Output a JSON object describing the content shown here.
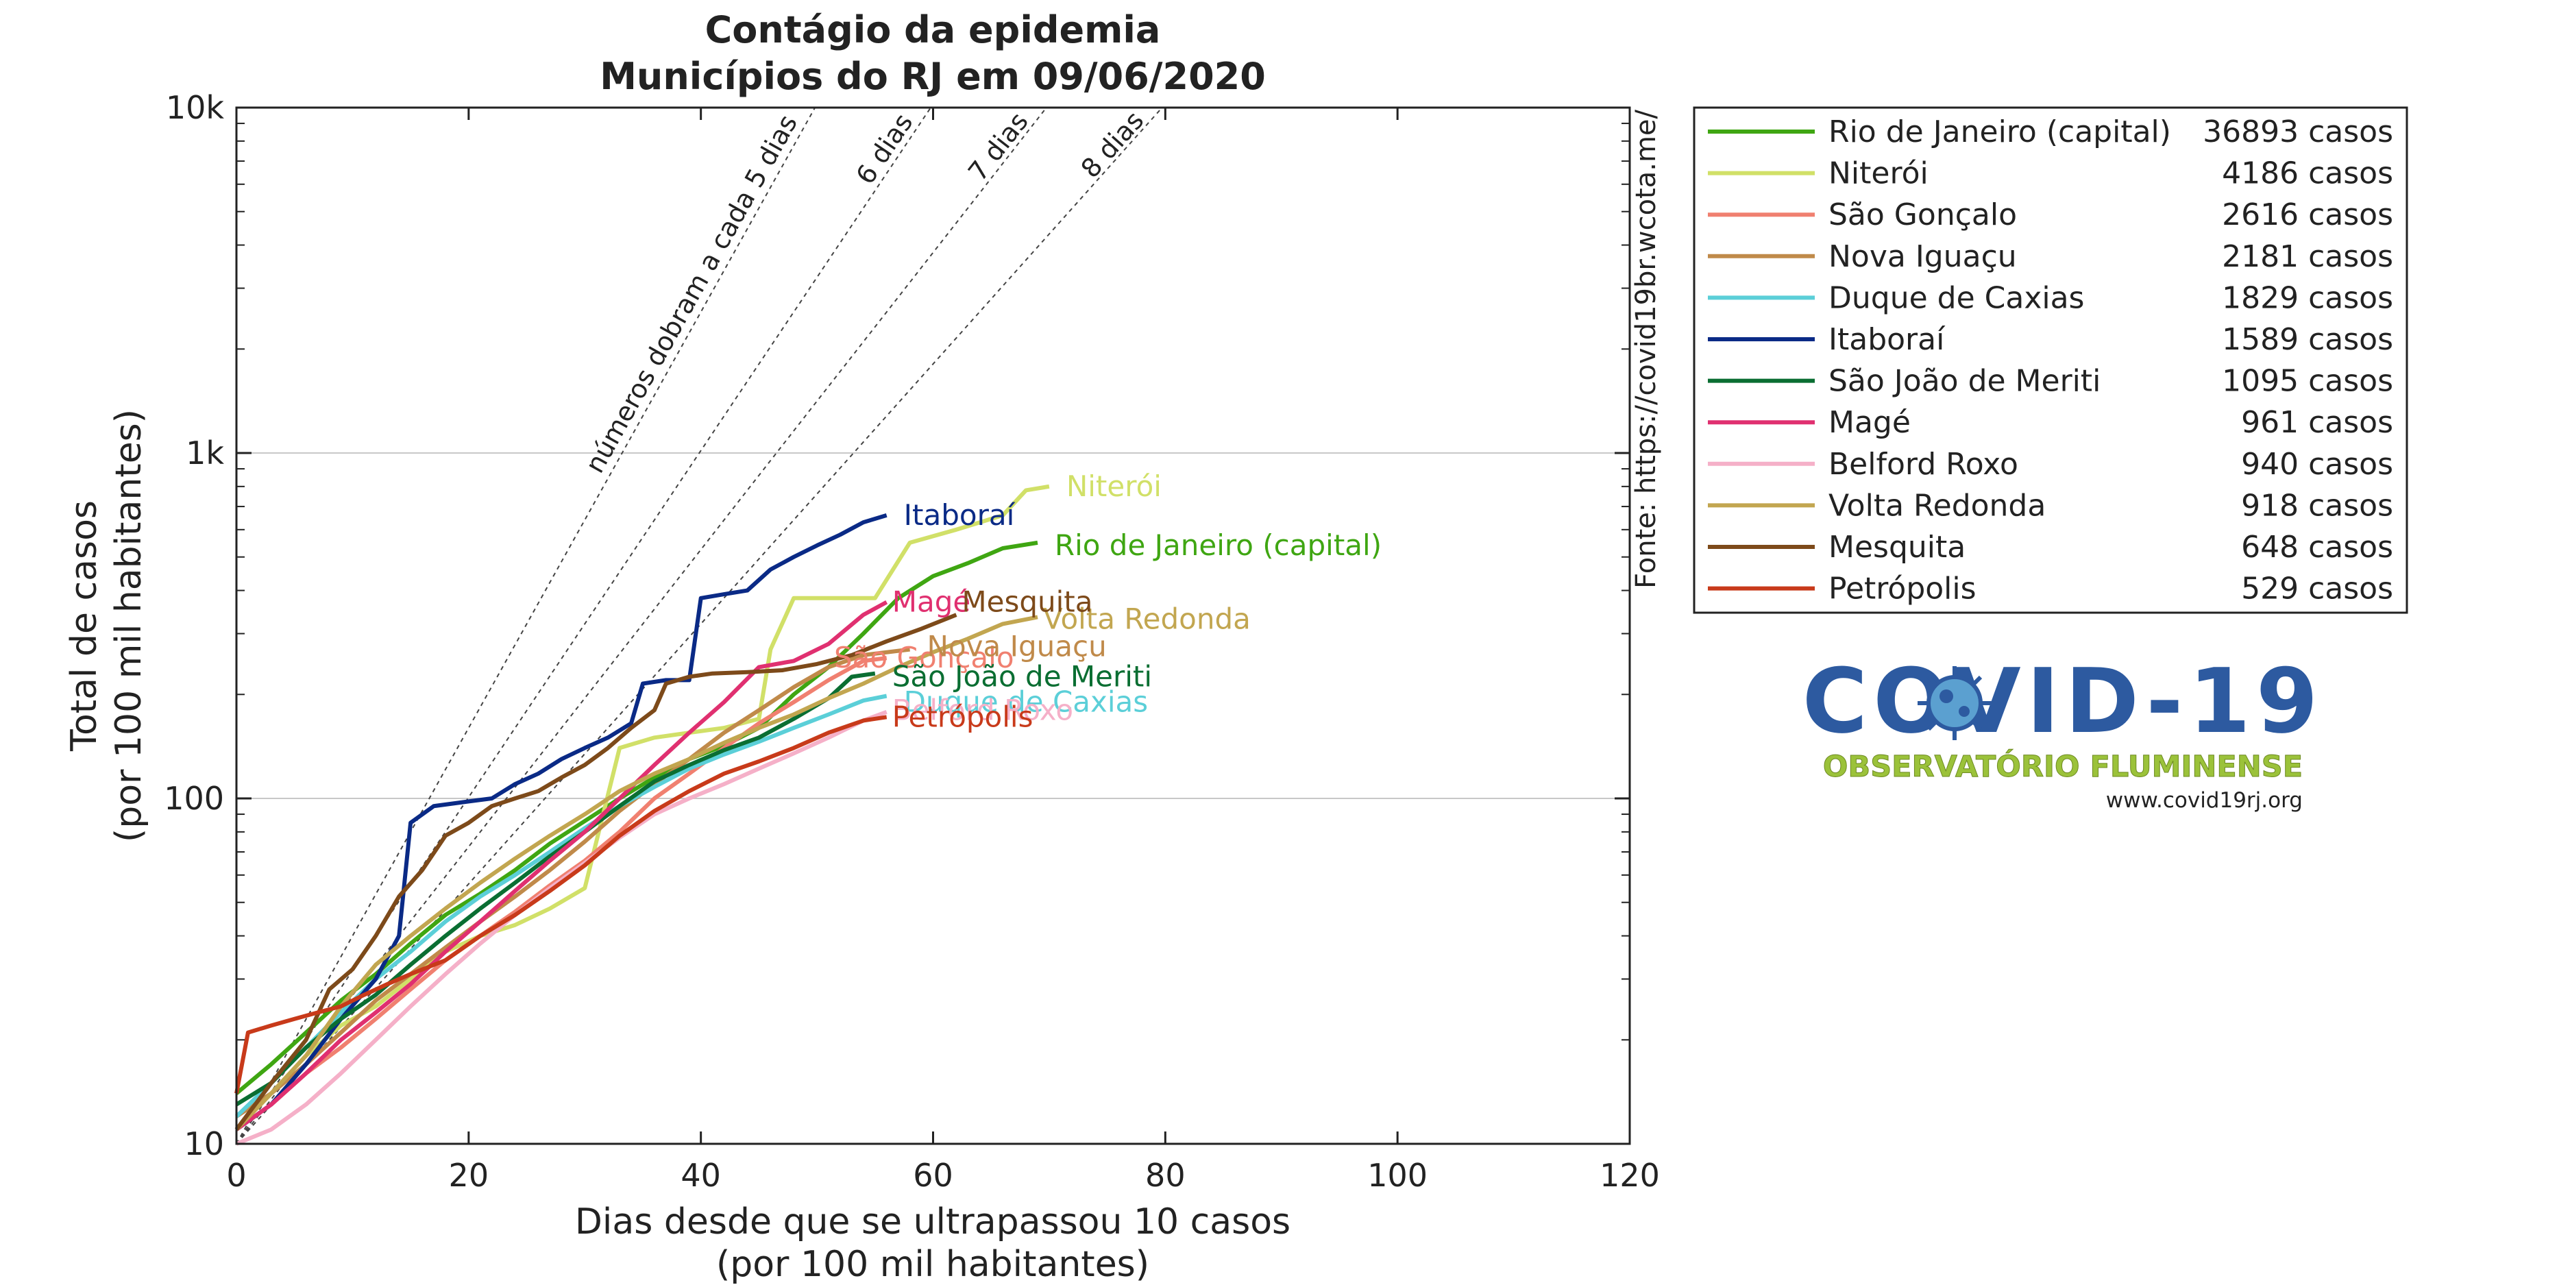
{
  "chart_data": {
    "type": "line",
    "title": "Contágio da epidemia",
    "subtitle": "Municípios do RJ em 09/06/2020",
    "xlabel": "Dias desde que se ultrapassou 10 casos",
    "xlabel2": "(por 100 mil habitantes)",
    "ylabel": "Total de casos",
    "ylabel2": "(por 100 mil habitantes)",
    "xlim": [
      0,
      120
    ],
    "ylim": [
      10,
      10000
    ],
    "yscale": "log",
    "x_ticks": [
      0,
      20,
      40,
      60,
      80,
      100,
      120
    ],
    "y_ticks": [
      {
        "v": 10,
        "label": "10"
      },
      {
        "v": 100,
        "label": "100"
      },
      {
        "v": 1000,
        "label": "1k"
      },
      {
        "v": 10000,
        "label": "10k"
      }
    ],
    "grid_y": [
      100,
      1000
    ],
    "side_label": "Fonte: https://covid19br.wcota.me/",
    "legend_position": "right",
    "doubling_lines": [
      {
        "days": 5,
        "label": "números dobram a cada 5 dias"
      },
      {
        "days": 6,
        "label": "6 dias"
      },
      {
        "days": 7,
        "label": "7 dias"
      },
      {
        "days": 8,
        "label": "8 dias"
      }
    ],
    "series": [
      {
        "name": "Rio de Janeiro (capital)",
        "cases": "36893 casos",
        "color": "#3fa612",
        "label_xy": [
          70,
          540
        ],
        "points": [
          [
            0,
            14
          ],
          [
            3,
            17
          ],
          [
            6,
            21
          ],
          [
            9,
            26
          ],
          [
            12,
            31
          ],
          [
            15,
            38
          ],
          [
            18,
            46
          ],
          [
            21,
            53
          ],
          [
            24,
            62
          ],
          [
            27,
            74
          ],
          [
            30,
            86
          ],
          [
            33,
            100
          ],
          [
            36,
            115
          ],
          [
            39,
            130
          ],
          [
            42,
            142
          ],
          [
            45,
            160
          ],
          [
            48,
            200
          ],
          [
            51,
            240
          ],
          [
            54,
            300
          ],
          [
            57,
            380
          ],
          [
            60,
            440
          ],
          [
            63,
            480
          ],
          [
            66,
            530
          ],
          [
            69,
            550
          ]
        ]
      },
      {
        "name": "Niterói",
        "cases": "4186 casos",
        "color": "#d1e068",
        "label_xy": [
          71,
          800
        ],
        "points": [
          [
            0,
            11
          ],
          [
            3,
            14
          ],
          [
            6,
            18
          ],
          [
            9,
            22
          ],
          [
            12,
            25
          ],
          [
            15,
            30
          ],
          [
            18,
            36
          ],
          [
            21,
            40
          ],
          [
            24,
            43
          ],
          [
            27,
            48
          ],
          [
            30,
            55
          ],
          [
            33,
            140
          ],
          [
            36,
            150
          ],
          [
            39,
            155
          ],
          [
            42,
            160
          ],
          [
            45,
            170
          ],
          [
            46,
            270
          ],
          [
            48,
            380
          ],
          [
            52,
            380
          ],
          [
            55,
            380
          ],
          [
            58,
            550
          ],
          [
            62,
            600
          ],
          [
            66,
            660
          ],
          [
            68,
            780
          ],
          [
            70,
            800
          ]
        ]
      },
      {
        "name": "São Gonçalo",
        "cases": "2616 casos",
        "color": "#f08070",
        "label_xy": [
          51,
          255
        ],
        "points": [
          [
            0,
            11
          ],
          [
            3,
            13
          ],
          [
            6,
            16
          ],
          [
            9,
            19
          ],
          [
            12,
            23
          ],
          [
            15,
            28
          ],
          [
            18,
            34
          ],
          [
            21,
            40
          ],
          [
            24,
            47
          ],
          [
            27,
            56
          ],
          [
            30,
            66
          ],
          [
            33,
            80
          ],
          [
            36,
            100
          ],
          [
            39,
            118
          ],
          [
            42,
            140
          ],
          [
            45,
            165
          ],
          [
            48,
            190
          ],
          [
            51,
            220
          ],
          [
            54,
            250
          ],
          [
            56,
            255
          ]
        ]
      },
      {
        "name": "Nova Iguaçu",
        "cases": "2181 casos",
        "color": "#c08a4a",
        "label_xy": [
          59,
          275
        ],
        "points": [
          [
            0,
            12
          ],
          [
            3,
            14
          ],
          [
            6,
            17
          ],
          [
            9,
            21
          ],
          [
            12,
            26
          ],
          [
            15,
            31
          ],
          [
            18,
            37
          ],
          [
            21,
            44
          ],
          [
            24,
            52
          ],
          [
            27,
            62
          ],
          [
            30,
            75
          ],
          [
            33,
            92
          ],
          [
            36,
            110
          ],
          [
            39,
            130
          ],
          [
            42,
            155
          ],
          [
            45,
            180
          ],
          [
            48,
            210
          ],
          [
            51,
            240
          ],
          [
            54,
            260
          ],
          [
            58,
            270
          ]
        ]
      },
      {
        "name": "Duque de Caxias",
        "cases": "1829 casos",
        "color": "#5bcfd8",
        "label_xy": [
          57,
          190
        ],
        "points": [
          [
            0,
            12
          ],
          [
            3,
            15
          ],
          [
            6,
            19
          ],
          [
            9,
            24
          ],
          [
            12,
            30
          ],
          [
            15,
            36
          ],
          [
            18,
            44
          ],
          [
            21,
            52
          ],
          [
            24,
            60
          ],
          [
            27,
            70
          ],
          [
            30,
            82
          ],
          [
            33,
            95
          ],
          [
            36,
            108
          ],
          [
            39,
            122
          ],
          [
            42,
            134
          ],
          [
            45,
            146
          ],
          [
            48,
            160
          ],
          [
            51,
            175
          ],
          [
            54,
            192
          ],
          [
            56,
            198
          ]
        ]
      },
      {
        "name": "Itaboraí",
        "cases": "1589 casos",
        "color": "#0a2a86",
        "label_xy": [
          57,
          660
        ],
        "points": [
          [
            0,
            11
          ],
          [
            3,
            13
          ],
          [
            6,
            17
          ],
          [
            9,
            23
          ],
          [
            12,
            30
          ],
          [
            14,
            40
          ],
          [
            15,
            85
          ],
          [
            17,
            95
          ],
          [
            20,
            98
          ],
          [
            22,
            100
          ],
          [
            24,
            110
          ],
          [
            26,
            118
          ],
          [
            28,
            130
          ],
          [
            30,
            140
          ],
          [
            32,
            150
          ],
          [
            34,
            165
          ],
          [
            35,
            215
          ],
          [
            37,
            220
          ],
          [
            39,
            220
          ],
          [
            40,
            380
          ],
          [
            42,
            390
          ],
          [
            44,
            400
          ],
          [
            46,
            460
          ],
          [
            48,
            500
          ],
          [
            50,
            540
          ],
          [
            52,
            580
          ],
          [
            54,
            630
          ],
          [
            56,
            660
          ]
        ]
      },
      {
        "name": "São João de Meriti",
        "cases": "1095 casos",
        "color": "#0a6e32",
        "label_xy": [
          56,
          225
        ],
        "points": [
          [
            0,
            13
          ],
          [
            3,
            15
          ],
          [
            6,
            19
          ],
          [
            9,
            23
          ],
          [
            12,
            27
          ],
          [
            15,
            33
          ],
          [
            18,
            40
          ],
          [
            21,
            48
          ],
          [
            24,
            57
          ],
          [
            27,
            68
          ],
          [
            30,
            80
          ],
          [
            33,
            95
          ],
          [
            36,
            112
          ],
          [
            39,
            125
          ],
          [
            42,
            138
          ],
          [
            45,
            150
          ],
          [
            48,
            170
          ],
          [
            51,
            195
          ],
          [
            53,
            225
          ],
          [
            55,
            230
          ]
        ]
      },
      {
        "name": "Magé",
        "cases": "961 casos",
        "color": "#e03070",
        "label_xy": [
          56,
          370
        ],
        "points": [
          [
            0,
            11
          ],
          [
            3,
            13
          ],
          [
            6,
            16
          ],
          [
            9,
            20
          ],
          [
            12,
            24
          ],
          [
            15,
            29
          ],
          [
            18,
            36
          ],
          [
            21,
            44
          ],
          [
            24,
            54
          ],
          [
            27,
            66
          ],
          [
            30,
            80
          ],
          [
            33,
            100
          ],
          [
            36,
            125
          ],
          [
            39,
            155
          ],
          [
            42,
            190
          ],
          [
            45,
            240
          ],
          [
            48,
            250
          ],
          [
            51,
            280
          ],
          [
            54,
            340
          ],
          [
            56,
            370
          ]
        ]
      },
      {
        "name": "Belford Roxo",
        "cases": "940 casos",
        "color": "#f5b0c8",
        "label_xy": [
          56,
          180
        ],
        "points": [
          [
            0,
            10
          ],
          [
            3,
            11
          ],
          [
            6,
            13
          ],
          [
            9,
            16
          ],
          [
            12,
            20
          ],
          [
            15,
            25
          ],
          [
            18,
            31
          ],
          [
            21,
            38
          ],
          [
            24,
            46
          ],
          [
            27,
            55
          ],
          [
            30,
            65
          ],
          [
            33,
            77
          ],
          [
            36,
            90
          ],
          [
            39,
            100
          ],
          [
            42,
            110
          ],
          [
            45,
            122
          ],
          [
            48,
            135
          ],
          [
            51,
            150
          ],
          [
            54,
            168
          ],
          [
            56,
            178
          ]
        ]
      },
      {
        "name": "Volta Redonda",
        "cases": "918 casos",
        "color": "#c2a650",
        "label_xy": [
          69,
          330
        ],
        "points": [
          [
            0,
            11
          ],
          [
            3,
            14
          ],
          [
            6,
            18
          ],
          [
            9,
            25
          ],
          [
            12,
            33
          ],
          [
            15,
            40
          ],
          [
            18,
            48
          ],
          [
            21,
            57
          ],
          [
            24,
            67
          ],
          [
            27,
            78
          ],
          [
            30,
            90
          ],
          [
            33,
            105
          ],
          [
            36,
            118
          ],
          [
            39,
            130
          ],
          [
            42,
            145
          ],
          [
            45,
            160
          ],
          [
            48,
            175
          ],
          [
            51,
            195
          ],
          [
            54,
            215
          ],
          [
            57,
            240
          ],
          [
            60,
            265
          ],
          [
            63,
            290
          ],
          [
            66,
            320
          ],
          [
            69,
            335
          ]
        ]
      },
      {
        "name": "Mesquita",
        "cases": "648 casos",
        "color": "#7d4a1a",
        "label_xy": [
          62,
          370
        ],
        "points": [
          [
            0,
            11
          ],
          [
            3,
            15
          ],
          [
            6,
            20
          ],
          [
            8,
            28
          ],
          [
            10,
            32
          ],
          [
            12,
            40
          ],
          [
            14,
            52
          ],
          [
            16,
            62
          ],
          [
            18,
            78
          ],
          [
            20,
            85
          ],
          [
            22,
            95
          ],
          [
            24,
            100
          ],
          [
            26,
            105
          ],
          [
            28,
            115
          ],
          [
            30,
            125
          ],
          [
            32,
            140
          ],
          [
            34,
            160
          ],
          [
            36,
            180
          ],
          [
            37,
            215
          ],
          [
            39,
            225
          ],
          [
            41,
            230
          ],
          [
            44,
            232
          ],
          [
            47,
            235
          ],
          [
            50,
            245
          ],
          [
            53,
            260
          ],
          [
            56,
            285
          ],
          [
            59,
            310
          ],
          [
            62,
            340
          ]
        ]
      },
      {
        "name": "Petrópolis",
        "cases": "529 casos",
        "color": "#c83a1a",
        "label_xy": [
          56,
          172
        ],
        "points": [
          [
            0,
            14
          ],
          [
            1,
            21
          ],
          [
            3,
            22
          ],
          [
            5,
            23
          ],
          [
            7,
            24
          ],
          [
            9,
            25
          ],
          [
            11,
            27
          ],
          [
            13,
            29
          ],
          [
            15,
            31
          ],
          [
            18,
            34
          ],
          [
            21,
            40
          ],
          [
            24,
            46
          ],
          [
            27,
            54
          ],
          [
            30,
            64
          ],
          [
            33,
            78
          ],
          [
            36,
            92
          ],
          [
            39,
            105
          ],
          [
            42,
            118
          ],
          [
            45,
            128
          ],
          [
            48,
            140
          ],
          [
            51,
            155
          ],
          [
            54,
            168
          ],
          [
            56,
            172
          ]
        ]
      }
    ]
  },
  "logo": {
    "title": "COVID-19",
    "subtitle": "OBSERVATÓRIO FLUMINENSE",
    "url": "www.covid19rj.org"
  }
}
